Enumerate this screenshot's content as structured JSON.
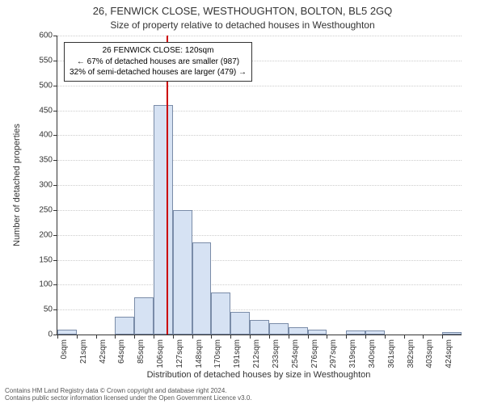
{
  "titles": {
    "main": "26, FENWICK CLOSE, WESTHOUGHTON, BOLTON, BL5 2GQ",
    "sub": "Size of property relative to detached houses in Westhoughton"
  },
  "axes": {
    "y_label": "Number of detached properties",
    "x_label": "Distribution of detached houses by size in Westhoughton",
    "ylim": [
      0,
      600
    ],
    "ytick_step": 50,
    "yticks": [
      0,
      50,
      100,
      150,
      200,
      250,
      300,
      350,
      400,
      450,
      500,
      550,
      600
    ],
    "xticks": [
      "0sqm",
      "21sqm",
      "42sqm",
      "64sqm",
      "85sqm",
      "106sqm",
      "127sqm",
      "148sqm",
      "170sqm",
      "191sqm",
      "212sqm",
      "233sqm",
      "254sqm",
      "276sqm",
      "297sqm",
      "319sqm",
      "340sqm",
      "361sqm",
      "382sqm",
      "403sqm",
      "424sqm"
    ]
  },
  "histogram": {
    "type": "histogram",
    "bin_count": 21,
    "values": [
      10,
      0,
      0,
      35,
      75,
      460,
      250,
      185,
      85,
      45,
      30,
      22,
      15,
      10,
      0,
      8,
      8,
      0,
      0,
      0,
      5
    ],
    "bar_fill": "#d6e2f3",
    "bar_border": "#7a8ca8",
    "grid_color": "#cccccc",
    "background_color": "#ffffff"
  },
  "marker": {
    "x_sqm": 120,
    "color": "#cc0000",
    "annotation": {
      "line1": "26 FENWICK CLOSE: 120sqm",
      "line2": "← 67% of detached houses are smaller (987)",
      "line3": "32% of semi-detached houses are larger (479) →"
    }
  },
  "attribution": {
    "line1": "Contains HM Land Registry data © Crown copyright and database right 2024.",
    "line2": "Contains public sector information licensed under the Open Government Licence v3.0."
  },
  "style": {
    "title_fontsize": 13,
    "sub_fontsize": 12,
    "axis_label_fontsize": 11,
    "tick_fontsize": 10,
    "annotation_fontsize": 10,
    "attribution_fontsize": 8,
    "text_color": "#333333"
  }
}
